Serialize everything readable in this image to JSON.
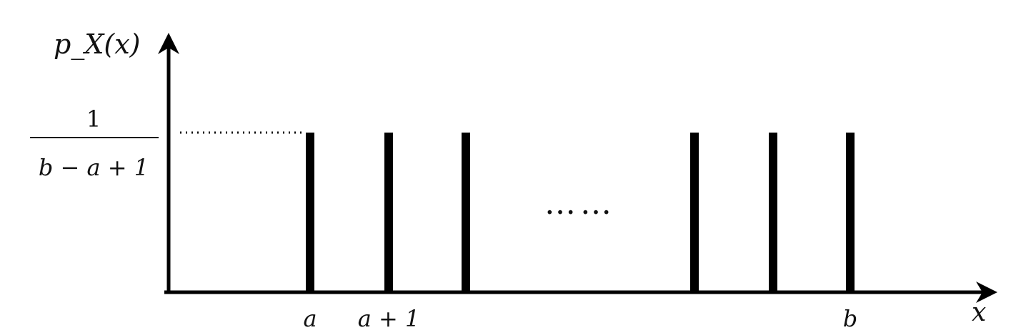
{
  "chart_data": {
    "type": "bar",
    "title": "",
    "ylabel": "p_X(x)",
    "xlabel": "x",
    "categories": [
      "a",
      "a + 1",
      "",
      "",
      "",
      "b"
    ],
    "values": [
      1,
      1,
      1,
      1,
      1,
      1
    ],
    "ytick_label": {
      "numerator": "1",
      "denominator": "b − a + 1"
    },
    "ellipsis": "……",
    "grid": false,
    "legend": "none",
    "colors": {
      "ink": "#000000"
    }
  }
}
